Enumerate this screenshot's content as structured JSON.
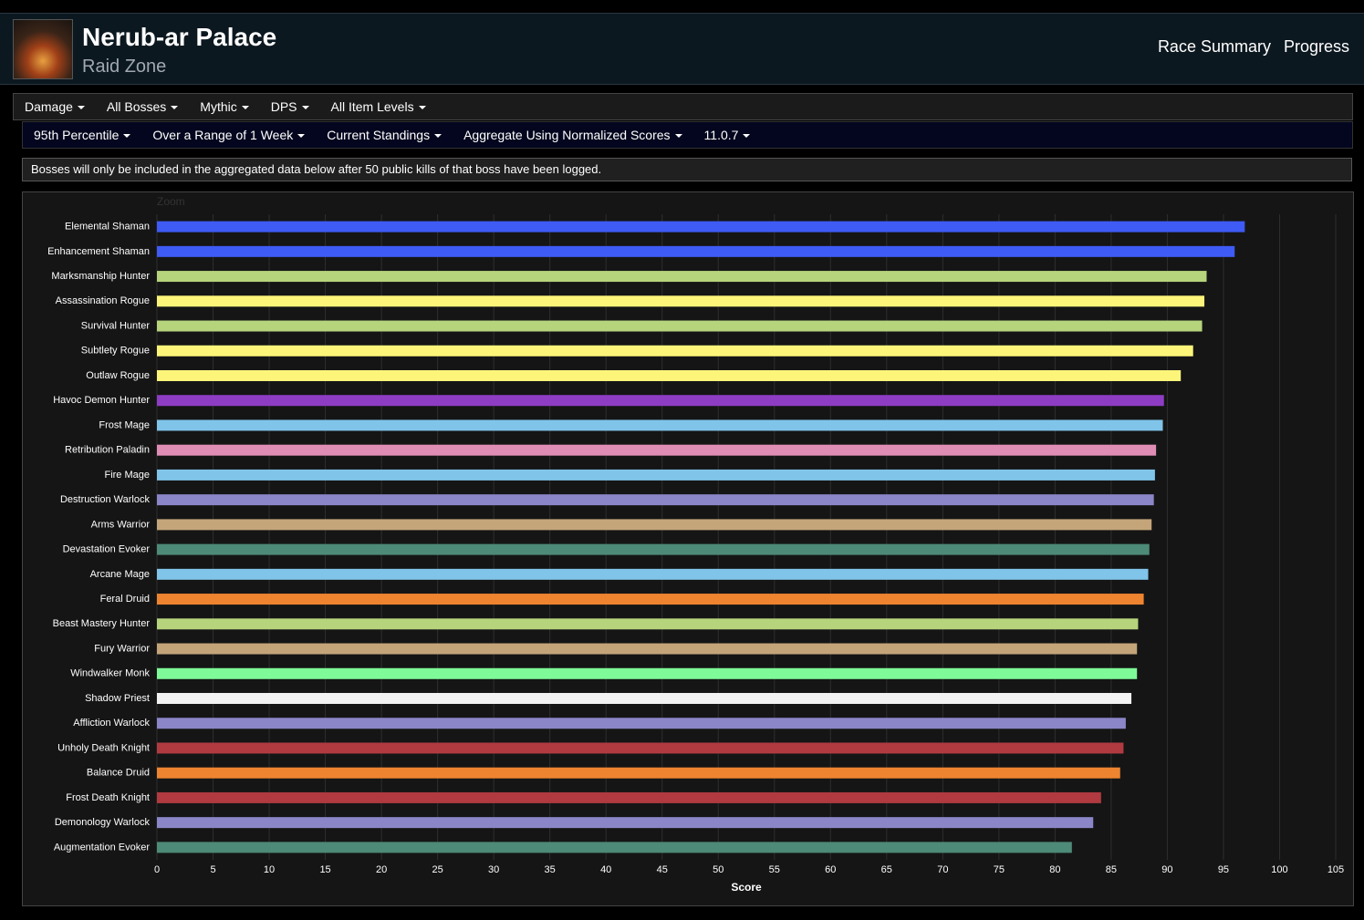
{
  "header": {
    "title": "Nerub-ar Palace",
    "subtitle": "Raid Zone",
    "links": [
      "Race Summary",
      "Progress"
    ]
  },
  "menu_primary": [
    "Damage",
    "All Bosses",
    "Mythic",
    "DPS",
    "All Item Levels"
  ],
  "menu_secondary": [
    "95th Percentile",
    "Over a Range of 1 Week",
    "Current Standings",
    "Aggregate Using Normalized Scores",
    "11.0.7"
  ],
  "notice": "Bosses will only be included in the aggregated data below after 50 public kills of that boss have been logged.",
  "chart_data": {
    "type": "hbar",
    "zoom_label": "Zoom",
    "xlabel": "Score",
    "categories": [
      "Elemental Shaman",
      "Enhancement Shaman",
      "Marksmanship Hunter",
      "Assassination Rogue",
      "Survival Hunter",
      "Subtlety Rogue",
      "Outlaw Rogue",
      "Havoc Demon Hunter",
      "Frost Mage",
      "Retribution Paladin",
      "Fire Mage",
      "Destruction Warlock",
      "Arms Warrior",
      "Devastation Evoker",
      "Arcane Mage",
      "Feral Druid",
      "Beast Mastery Hunter",
      "Fury Warrior",
      "Windwalker Monk",
      "Shadow Priest",
      "Affliction Warlock",
      "Unholy Death Knight",
      "Balance Druid",
      "Frost Death Knight",
      "Demonology Warlock",
      "Augmentation Evoker"
    ],
    "values": [
      96.9,
      96.0,
      93.5,
      93.3,
      93.1,
      92.3,
      91.2,
      89.7,
      89.6,
      89.0,
      88.9,
      88.8,
      88.6,
      88.4,
      88.3,
      87.9,
      87.4,
      87.3,
      87.3,
      86.8,
      86.3,
      86.1,
      85.8,
      84.1,
      83.4,
      81.5
    ],
    "colors": [
      "#3e5bf6",
      "#3e5bf6",
      "#b6d47c",
      "#fdf57a",
      "#b6d47c",
      "#fdf57a",
      "#fdf57a",
      "#8e3cc4",
      "#80c4e9",
      "#e08db6",
      "#80c4e9",
      "#8b86c8",
      "#c4a57a",
      "#4e8a78",
      "#80c4e9",
      "#ee8430",
      "#b6d47c",
      "#c4a57a",
      "#7efa98",
      "#f2f2f2",
      "#8b86c8",
      "#b03a40",
      "#ee8430",
      "#b03a40",
      "#8b86c8",
      "#4e8a78"
    ],
    "xlim": [
      0,
      105
    ],
    "xticks": [
      0,
      5,
      10,
      15,
      20,
      25,
      30,
      35,
      40,
      45,
      50,
      55,
      60,
      65,
      70,
      75,
      80,
      85,
      90,
      95,
      100,
      105
    ],
    "grid": true
  }
}
